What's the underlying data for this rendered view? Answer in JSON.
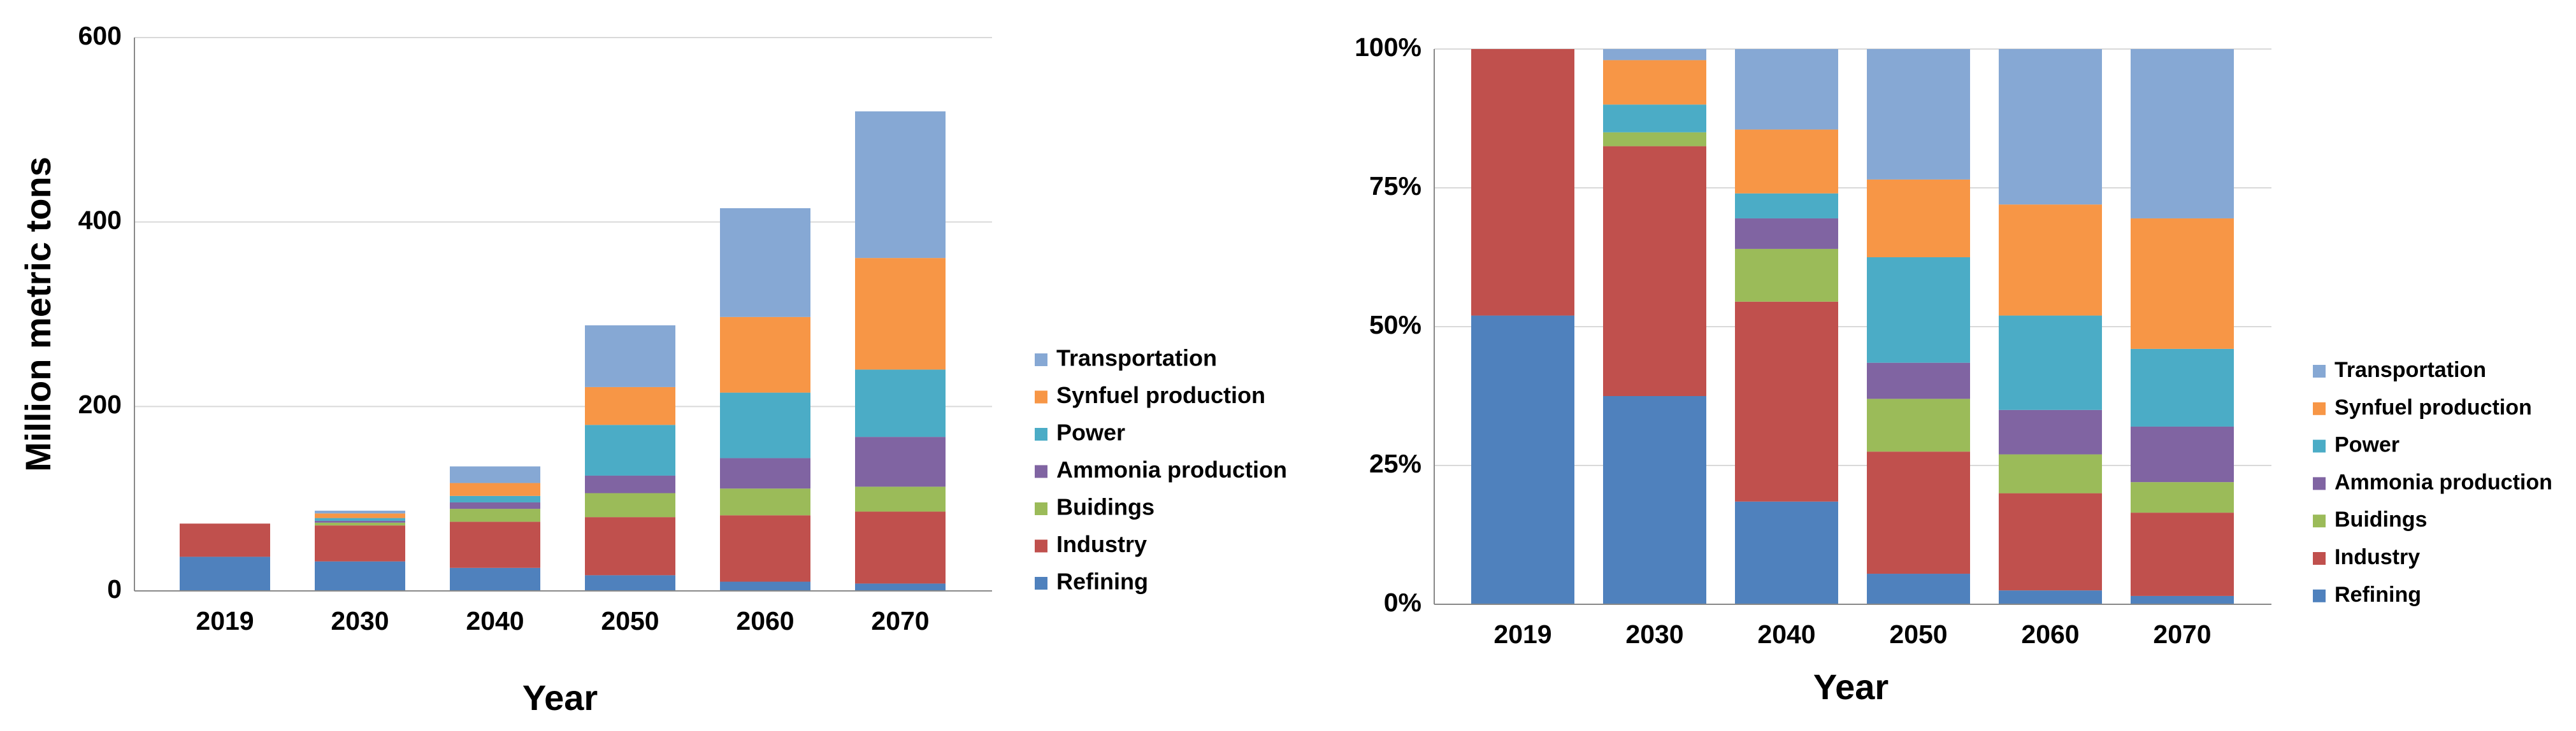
{
  "chart_data": [
    {
      "type": "bar",
      "stacked": true,
      "y_label": "Million metric tons",
      "x_label": "Year",
      "categories": [
        "2019",
        "2030",
        "2040",
        "2050",
        "2060",
        "2070"
      ],
      "ylim": [
        0,
        600
      ],
      "yticks": [
        0,
        200,
        400,
        600
      ],
      "grid": true,
      "series": [
        {
          "name": "Refining",
          "color": "#4f81bd",
          "values": [
            37,
            32,
            25,
            17,
            10,
            8
          ]
        },
        {
          "name": "Industry",
          "color": "#c0504d",
          "values": [
            36,
            39,
            50,
            63,
            72,
            78
          ]
        },
        {
          "name": "Buidings",
          "color": "#9bbb59",
          "values": [
            0,
            3,
            14,
            26,
            29,
            27
          ]
        },
        {
          "name": "Ammonia production",
          "color": "#8064a2",
          "values": [
            0,
            2,
            7,
            19,
            33,
            54
          ]
        },
        {
          "name": "Power",
          "color": "#4bacc6",
          "values": [
            0,
            3,
            7,
            55,
            71,
            73
          ]
        },
        {
          "name": "Synfuel production",
          "color": "#f79646",
          "values": [
            0,
            5,
            14,
            41,
            82,
            121
          ]
        },
        {
          "name": "Transportation",
          "color": "#86a8d4",
          "values": [
            0,
            3,
            18,
            67,
            118,
            159
          ]
        }
      ]
    },
    {
      "type": "bar",
      "stacked": true,
      "x_label": "Year",
      "categories": [
        "2019",
        "2030",
        "2040",
        "2050",
        "2060",
        "2070"
      ],
      "ylim": [
        0,
        100
      ],
      "yticks": [
        {
          "value": 0,
          "label": "0%"
        },
        {
          "value": 25,
          "label": "25%"
        },
        {
          "value": 50,
          "label": "50%"
        },
        {
          "value": 75,
          "label": "75%"
        },
        {
          "value": 100,
          "label": "100%"
        }
      ],
      "grid": true,
      "series": [
        {
          "name": "Refining",
          "color": "#4f81bd",
          "values": [
            52,
            37.5,
            18.5,
            5.5,
            2.5,
            1.5
          ]
        },
        {
          "name": "Industry",
          "color": "#c0504d",
          "values": [
            48,
            45,
            36,
            22,
            17.5,
            15
          ]
        },
        {
          "name": "Buidings",
          "color": "#9bbb59",
          "values": [
            0,
            2.5,
            9.5,
            9.5,
            7,
            5.5
          ]
        },
        {
          "name": "Ammonia production",
          "color": "#8064a2",
          "values": [
            0,
            0,
            5.5,
            6.5,
            8,
            10
          ]
        },
        {
          "name": "Power",
          "color": "#4bacc6",
          "values": [
            0,
            5,
            4.5,
            19,
            17,
            14
          ]
        },
        {
          "name": "Synfuel production",
          "color": "#f79646",
          "values": [
            0,
            8,
            11.5,
            14,
            20,
            23.5
          ]
        },
        {
          "name": "Transportation",
          "color": "#86a8d4",
          "values": [
            0,
            2,
            14.5,
            23.5,
            28,
            30.5
          ]
        }
      ]
    }
  ]
}
